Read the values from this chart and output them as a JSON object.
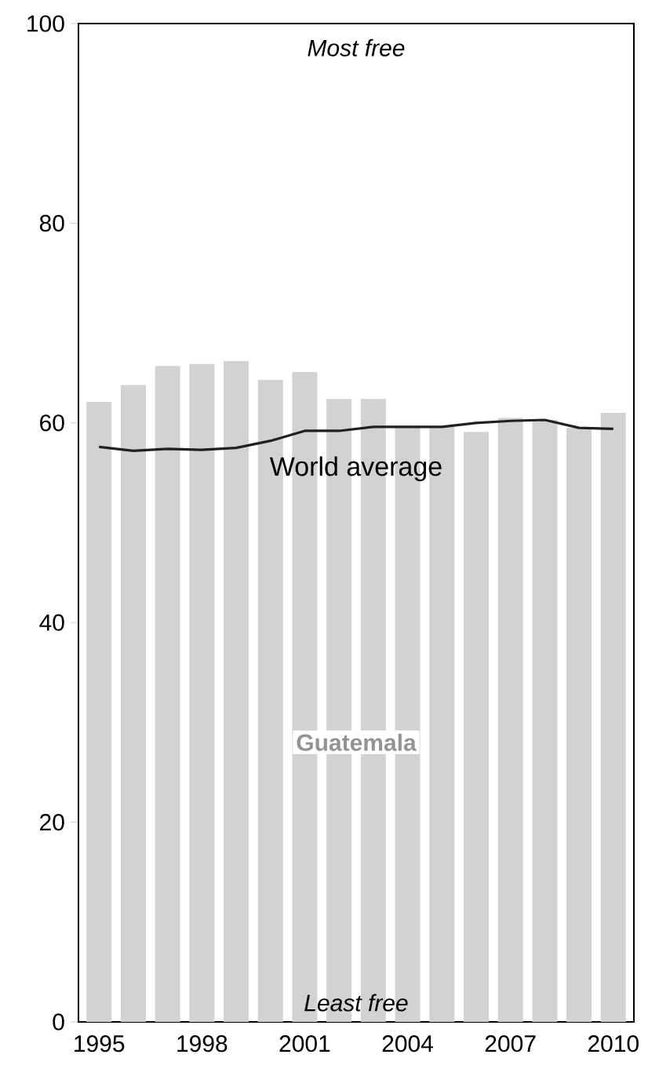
{
  "chart_data": {
    "type": "bar",
    "categories": [
      "1995",
      null,
      null,
      "1998",
      null,
      null,
      "2001",
      null,
      null,
      "2004",
      null,
      null,
      "2007",
      null,
      null,
      "2010"
    ],
    "series": [
      {
        "name": "Guatemala",
        "color": "#d1d2d4",
        "values": [
          62.1,
          63.8,
          65.7,
          65.9,
          66.2,
          64.3,
          65.1,
          62.4,
          62.4,
          59.6,
          59.6,
          59.1,
          60.5,
          60.3,
          59.5,
          61.0
        ]
      },
      {
        "name": "World average",
        "type": "line",
        "color": "#231f20",
        "values": [
          57.6,
          57.2,
          57.4,
          57.3,
          57.5,
          58.2,
          59.2,
          59.2,
          59.6,
          59.6,
          59.6,
          60.0,
          60.2,
          60.3,
          59.5,
          59.4
        ]
      }
    ],
    "ylim": [
      0,
      100
    ],
    "yticks": [
      0,
      20,
      40,
      60,
      80,
      100
    ],
    "annotations": [
      "Most free",
      "Least free"
    ]
  }
}
